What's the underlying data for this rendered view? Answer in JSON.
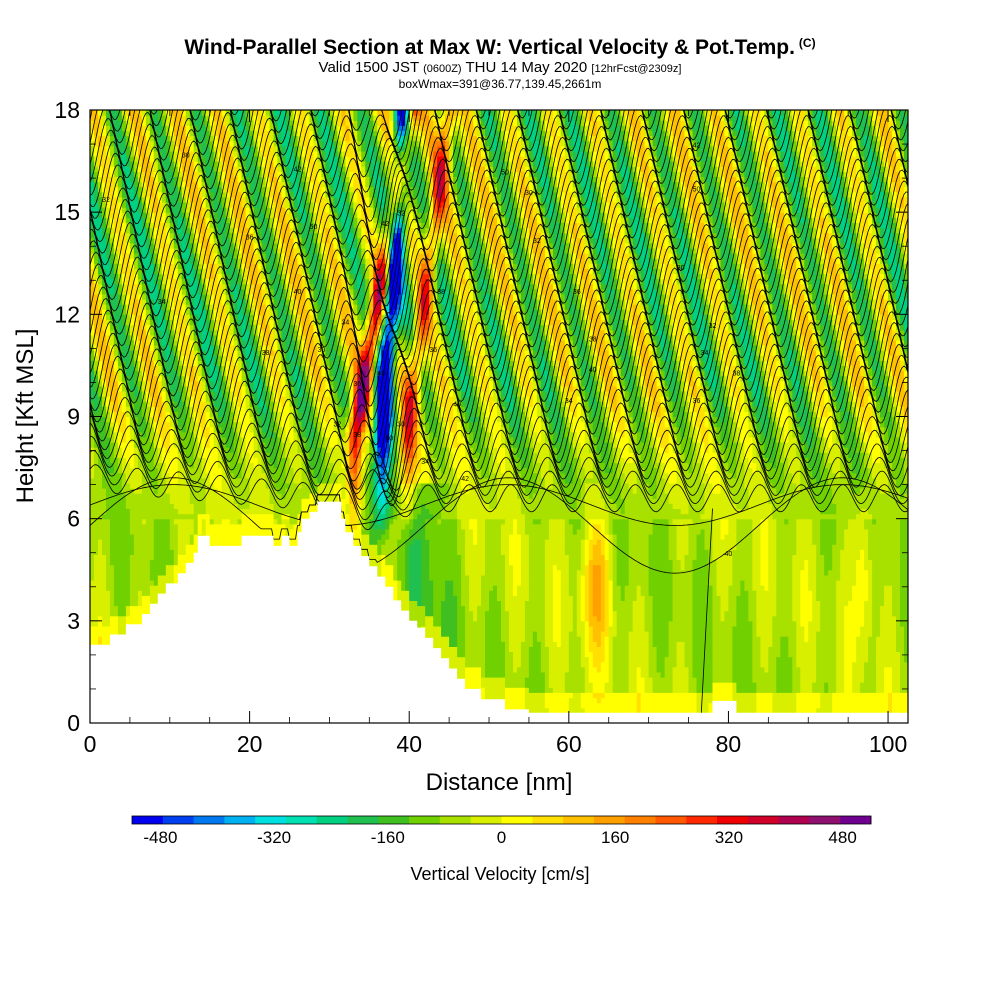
{
  "title": {
    "main": "Wind-Parallel Section at Max W: Vertical Velocity & Pot.Temp.",
    "copyright": "(C)",
    "valid_prefix": "Valid 1500 JST",
    "valid_utc": "(0600Z)",
    "valid_date": "THU 14 May 2020",
    "forecast": "[12hrFcst@2309z]",
    "boxwmax": "boxWmax=391@36.77,139.45,2661m"
  },
  "chart_data": {
    "type": "heatmap",
    "xlabel": "Distance [nm]",
    "ylabel": "Height [Kft MSL]",
    "xlim": [
      0,
      102.5
    ],
    "ylim": [
      0,
      18
    ],
    "x_ticks": [
      0,
      20,
      40,
      60,
      80,
      100
    ],
    "y_ticks": [
      0,
      3,
      6,
      9,
      12,
      15,
      18
    ],
    "colorbar": {
      "label": "Vertical Velocity [cm/s]",
      "min": -520,
      "max": 520,
      "ticks": [
        -480,
        -320,
        -160,
        0,
        160,
        320,
        480
      ],
      "colors": [
        "#0000f0",
        "#0040f0",
        "#0078f0",
        "#00b0f0",
        "#00e0e0",
        "#00e0b0",
        "#00d080",
        "#20c050",
        "#40c020",
        "#70d000",
        "#a8e000",
        "#d8f000",
        "#ffff00",
        "#ffe000",
        "#ffc000",
        "#ffa000",
        "#ff8000",
        "#ff5800",
        "#ff2800",
        "#f00000",
        "#d00028",
        "#b00050",
        "#901070",
        "#700090"
      ]
    },
    "terrain": [
      [
        0,
        2.3
      ],
      [
        2.5,
        2.3
      ],
      [
        2.5,
        2.6
      ],
      [
        4.5,
        2.6
      ],
      [
        4.5,
        2.9
      ],
      [
        6.5,
        2.9
      ],
      [
        6.5,
        3.2
      ],
      [
        7.5,
        3.2
      ],
      [
        7.5,
        3.5
      ],
      [
        8.5,
        3.5
      ],
      [
        8.5,
        3.8
      ],
      [
        9.5,
        3.8
      ],
      [
        9.5,
        4.1
      ],
      [
        11,
        4.1
      ],
      [
        11,
        4.4
      ],
      [
        12,
        4.4
      ],
      [
        12,
        4.7
      ],
      [
        13,
        4.7
      ],
      [
        13,
        5
      ],
      [
        13.5,
        5
      ],
      [
        13.5,
        5.5
      ],
      [
        15,
        5.5
      ],
      [
        15,
        5.2
      ],
      [
        19,
        5.2
      ],
      [
        19,
        5.5
      ],
      [
        23,
        5.5
      ],
      [
        23,
        5.2
      ],
      [
        24,
        5.2
      ],
      [
        24,
        5.5
      ],
      [
        25,
        5.5
      ],
      [
        25,
        5.2
      ],
      [
        26,
        5.2
      ],
      [
        26,
        5.6
      ],
      [
        26.5,
        5.6
      ],
      [
        26.5,
        6
      ],
      [
        27.5,
        6
      ],
      [
        27.5,
        6.2
      ],
      [
        28.5,
        6.2
      ],
      [
        28.5,
        6.5
      ],
      [
        31.5,
        6.5
      ],
      [
        31.5,
        6
      ],
      [
        32,
        6
      ],
      [
        32,
        5.6
      ],
      [
        33,
        5.6
      ],
      [
        33,
        5.2
      ],
      [
        34,
        5.2
      ],
      [
        34,
        4.9
      ],
      [
        35,
        4.9
      ],
      [
        35,
        4.6
      ],
      [
        36,
        4.6
      ],
      [
        36,
        4.3
      ],
      [
        37,
        4.3
      ],
      [
        37,
        4
      ],
      [
        38,
        4
      ],
      [
        38,
        3.6
      ],
      [
        39,
        3.6
      ],
      [
        39,
        3.3
      ],
      [
        40,
        3.3
      ],
      [
        40,
        3
      ],
      [
        41,
        3
      ],
      [
        41,
        2.8
      ],
      [
        42,
        2.8
      ],
      [
        42,
        2.5
      ],
      [
        43,
        2.5
      ],
      [
        43,
        2.2
      ],
      [
        44,
        2.2
      ],
      [
        44,
        1.9
      ],
      [
        45,
        1.9
      ],
      [
        45,
        1.6
      ],
      [
        46,
        1.6
      ],
      [
        46,
        1.3
      ],
      [
        47,
        1.3
      ],
      [
        47,
        1
      ],
      [
        49,
        1
      ],
      [
        49,
        0.7
      ],
      [
        52,
        0.7
      ],
      [
        52,
        0.4
      ],
      [
        55,
        0.4
      ],
      [
        55,
        0.3
      ],
      [
        78,
        0.3
      ],
      [
        78,
        0.65
      ],
      [
        81,
        0.65
      ],
      [
        81,
        0.3
      ],
      [
        102.5,
        0.3
      ]
    ],
    "theta_contour_labels": [
      "30",
      "32",
      "34",
      "36",
      "38",
      "40",
      "42",
      "50"
    ]
  }
}
